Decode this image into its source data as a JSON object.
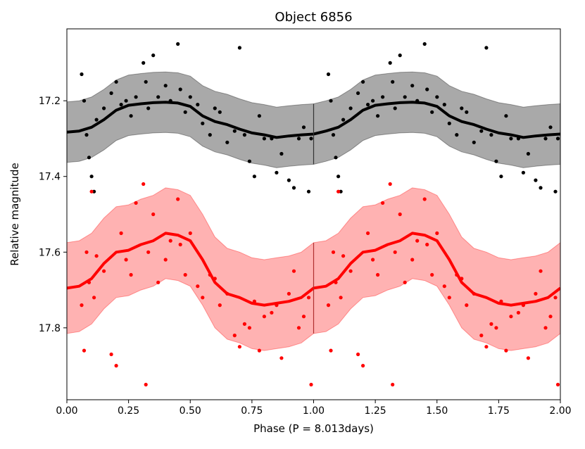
{
  "chart_data": {
    "type": "scatter",
    "title": "Object 6856",
    "xlabel": "Phase (P = 8.013days)",
    "ylabel": "Relative magnitude",
    "xlim": [
      0.0,
      2.0
    ],
    "ylim": [
      17.99,
      17.01
    ],
    "y_inverted": true,
    "period_days": 8.013,
    "xticks": [
      0.0,
      0.25,
      0.5,
      0.75,
      1.0,
      1.25,
      1.5,
      1.75,
      2.0
    ],
    "xtick_labels": [
      "0.00",
      "0.25",
      "0.50",
      "0.75",
      "1.00",
      "1.25",
      "1.50",
      "1.75",
      "2.00"
    ],
    "yticks": [
      17.2,
      17.4,
      17.6,
      17.8
    ],
    "ytick_labels": [
      "17.2",
      "17.4",
      "17.6",
      "17.8"
    ],
    "vertical_marker_x": 1.0,
    "series": [
      {
        "name": "black band",
        "color": "#000000",
        "band_color": "#a9a9a9",
        "mean_curve": {
          "x": [
            0.0,
            0.05,
            0.1,
            0.15,
            0.2,
            0.25,
            0.3,
            0.35,
            0.4,
            0.45,
            0.5,
            0.55,
            0.6,
            0.65,
            0.7,
            0.75,
            0.8,
            0.85,
            0.9,
            0.95,
            1.0
          ],
          "y": [
            17.283,
            17.28,
            17.27,
            17.25,
            17.225,
            17.212,
            17.208,
            17.205,
            17.204,
            17.206,
            17.215,
            17.24,
            17.255,
            17.263,
            17.275,
            17.285,
            17.29,
            17.297,
            17.293,
            17.29,
            17.288
          ]
        },
        "band_half_width": 0.08,
        "points": {
          "x": [
            0.06,
            0.07,
            0.08,
            0.09,
            0.1,
            0.11,
            0.12,
            0.15,
            0.18,
            0.2,
            0.22,
            0.24,
            0.26,
            0.28,
            0.31,
            0.32,
            0.33,
            0.35,
            0.37,
            0.4,
            0.42,
            0.45,
            0.46,
            0.48,
            0.5,
            0.53,
            0.55,
            0.58,
            0.6,
            0.62,
            0.65,
            0.68,
            0.7,
            0.72,
            0.74,
            0.76,
            0.78,
            0.8,
            0.83,
            0.85,
            0.87,
            0.9,
            0.92,
            0.94,
            0.96,
            0.98,
            0.99
          ],
          "y": [
            17.13,
            17.2,
            17.29,
            17.35,
            17.4,
            17.44,
            17.25,
            17.22,
            17.18,
            17.15,
            17.21,
            17.2,
            17.24,
            17.19,
            17.1,
            17.15,
            17.22,
            17.08,
            17.19,
            17.16,
            17.2,
            17.05,
            17.17,
            17.23,
            17.19,
            17.21,
            17.26,
            17.29,
            17.22,
            17.23,
            17.31,
            17.28,
            17.06,
            17.29,
            17.36,
            17.4,
            17.24,
            17.3,
            17.3,
            17.39,
            17.34,
            17.41,
            17.43,
            17.3,
            17.27,
            17.44,
            17.3
          ]
        }
      },
      {
        "name": "red band",
        "color": "#ff0000",
        "band_color": "#ffb2b2",
        "mean_curve": {
          "x": [
            0.0,
            0.05,
            0.1,
            0.15,
            0.2,
            0.25,
            0.3,
            0.35,
            0.4,
            0.45,
            0.5,
            0.55,
            0.6,
            0.65,
            0.7,
            0.75,
            0.8,
            0.85,
            0.9,
            0.95,
            1.0
          ],
          "y": [
            17.695,
            17.69,
            17.67,
            17.63,
            17.6,
            17.595,
            17.58,
            17.57,
            17.55,
            17.555,
            17.57,
            17.62,
            17.68,
            17.71,
            17.72,
            17.735,
            17.74,
            17.735,
            17.73,
            17.72,
            17.695
          ]
        },
        "band_half_width": 0.12,
        "points": {
          "x": [
            0.06,
            0.07,
            0.08,
            0.09,
            0.1,
            0.11,
            0.12,
            0.15,
            0.18,
            0.2,
            0.22,
            0.24,
            0.26,
            0.28,
            0.31,
            0.32,
            0.33,
            0.35,
            0.37,
            0.4,
            0.42,
            0.45,
            0.46,
            0.48,
            0.5,
            0.53,
            0.55,
            0.58,
            0.6,
            0.62,
            0.65,
            0.68,
            0.7,
            0.72,
            0.74,
            0.76,
            0.78,
            0.8,
            0.83,
            0.85,
            0.87,
            0.9,
            0.92,
            0.94,
            0.96,
            0.98,
            0.99
          ],
          "y": [
            17.74,
            17.86,
            17.6,
            17.68,
            17.44,
            17.72,
            17.61,
            17.65,
            17.87,
            17.9,
            17.55,
            17.62,
            17.66,
            17.47,
            17.42,
            17.95,
            17.6,
            17.5,
            17.68,
            17.62,
            17.57,
            17.46,
            17.58,
            17.66,
            17.55,
            17.69,
            17.72,
            17.66,
            17.67,
            17.74,
            17.71,
            17.82,
            17.85,
            17.79,
            17.8,
            17.73,
            17.86,
            17.77,
            17.76,
            17.74,
            17.88,
            17.71,
            17.65,
            17.8,
            17.77,
            17.72,
            17.95
          ]
        }
      }
    ]
  }
}
